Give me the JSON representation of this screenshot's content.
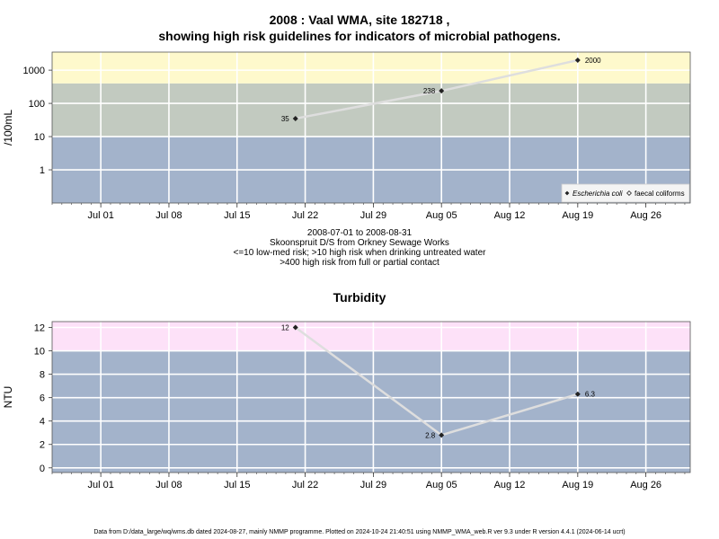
{
  "titles": {
    "line1": "2008 : Vaal WMA, site 182718 ,",
    "line2": "showing high risk guidelines for indicators of microbial pathogens."
  },
  "captions": {
    "dates": "2008-07-01 to 2008-08-31",
    "site": "Skoonspruit D/S from Orkney Sewage Works",
    "risk1": "<=10 low-med risk; >10 high risk when drinking untreated water",
    "risk2": ">400 high risk from full or partial contact"
  },
  "footer": "Data from D:/data_large/wq/wms.db dated 2024-08-27, mainly NMMP programme. Plotted on 2024-10-24 21:40:51 using NMMP_WMA_web.R ver 9.3 under R version 4.4.1 (2024-06-14 ucrt)",
  "colors": {
    "band_low": "#a3b3cb",
    "band_mid": "#c2cac0",
    "band_high_micro": "#fef9cc",
    "band_high_turb": "#fde1f8",
    "grid": "#ffffff",
    "line": "#dedede",
    "point": "#222222"
  },
  "chart_data": [
    {
      "type": "line",
      "title": "",
      "ylabel": "/100mL",
      "yscale": "log",
      "ylim": [
        0.1,
        3500
      ],
      "yticks": [
        1,
        10,
        100,
        1000
      ],
      "ytick_labels": [
        "1",
        "10",
        "100",
        "1000"
      ],
      "xlim": [
        "2008-06-26",
        "2009-09-06"
      ],
      "xticks": [
        "2008-07-01",
        "2008-07-08",
        "2008-07-15",
        "2008-07-22",
        "2008-07-29",
        "2008-08-05",
        "2008-08-12",
        "2008-08-19",
        "2008-08-26"
      ],
      "xtick_labels": [
        "Jul 01",
        "Jul 08",
        "Jul 15",
        "Jul 22",
        "Jul 29",
        "Aug 05",
        "Aug 12",
        "Aug 19",
        "Aug 26"
      ],
      "bands": [
        {
          "from": 0.1,
          "to": 10,
          "color": "band_low"
        },
        {
          "from": 10,
          "to": 400,
          "color": "band_mid"
        },
        {
          "from": 400,
          "to": 3500,
          "color": "band_high_micro"
        }
      ],
      "grid": true,
      "legend_position": "bottom-right",
      "legend": [
        {
          "name": "Escherichia coli",
          "marker": "filled-diamond",
          "italic": true
        },
        {
          "name": "faecal coliforms",
          "marker": "open-diamond",
          "italic": false
        }
      ],
      "series": [
        {
          "name": "Escherichia coli",
          "x": [
            "2008-07-21",
            "2008-08-05",
            "2008-08-19"
          ],
          "y": [
            35,
            238,
            2000
          ],
          "labels": [
            "35",
            "238",
            "2000"
          ],
          "label_side": [
            "left",
            "left",
            "right"
          ]
        }
      ]
    },
    {
      "type": "line",
      "title": "Turbidity",
      "ylabel": "NTU",
      "yscale": "linear",
      "ylim": [
        -0.4,
        12.5
      ],
      "yticks": [
        0,
        2,
        4,
        6,
        8,
        10,
        12
      ],
      "ytick_labels": [
        "0",
        "2",
        "4",
        "6",
        "8",
        "10",
        "12"
      ],
      "xlim": [
        "2008-06-26",
        "2009-09-06"
      ],
      "xticks": [
        "2008-07-01",
        "2008-07-08",
        "2008-07-15",
        "2008-07-22",
        "2008-07-29",
        "2008-08-05",
        "2008-08-12",
        "2008-08-19",
        "2008-08-26"
      ],
      "xtick_labels": [
        "Jul 01",
        "Jul 08",
        "Jul 15",
        "Jul 22",
        "Jul 29",
        "Aug 05",
        "Aug 12",
        "Aug 19",
        "Aug 26"
      ],
      "bands": [
        {
          "from": -0.4,
          "to": 10,
          "color": "band_low"
        },
        {
          "from": 10,
          "to": 12.5,
          "color": "band_high_turb"
        }
      ],
      "grid": true,
      "series": [
        {
          "name": "",
          "x": [
            "2008-07-21",
            "2008-08-05",
            "2008-08-19"
          ],
          "y": [
            12,
            2.8,
            6.3
          ],
          "labels": [
            "12",
            "2.8",
            "6.3"
          ],
          "label_side": [
            "left",
            "left",
            "right"
          ]
        }
      ]
    }
  ]
}
